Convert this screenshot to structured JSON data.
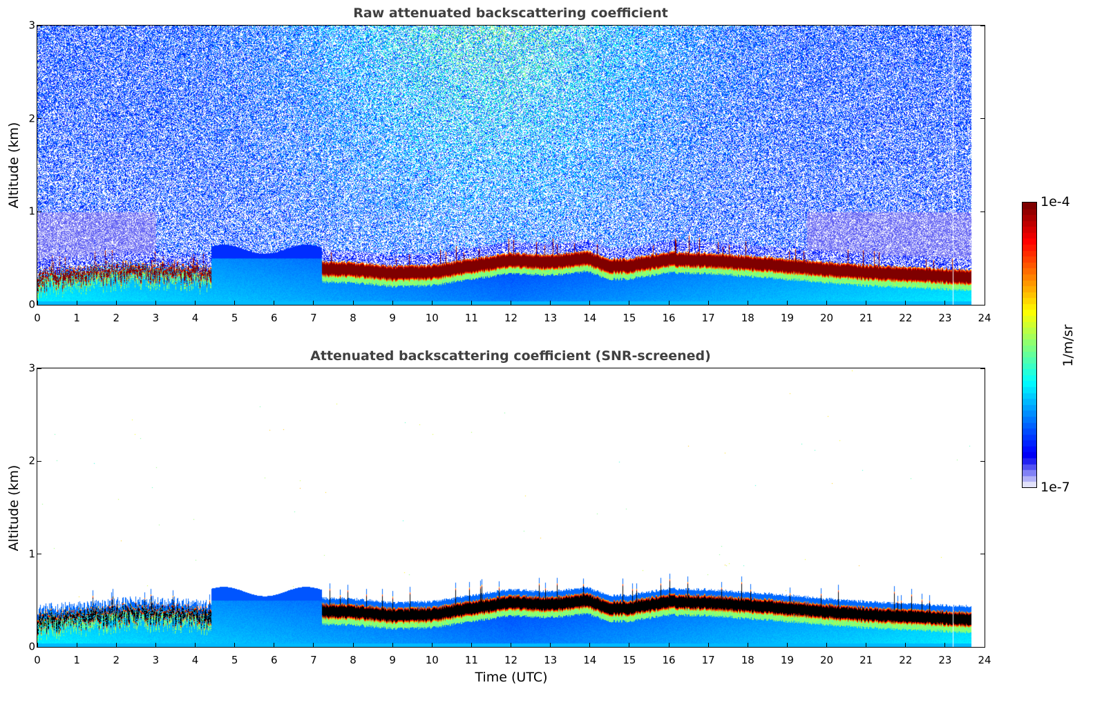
{
  "chart_data": [
    {
      "type": "heatmap",
      "title": "Raw attenuated backscattering coefficient",
      "xlabel": "",
      "ylabel": "Altitude (km)",
      "xlim": [
        0,
        24
      ],
      "ylim": [
        0,
        3
      ],
      "x_ticks": [
        "0",
        "1",
        "2",
        "3",
        "4",
        "5",
        "6",
        "7",
        "8",
        "9",
        "10",
        "11",
        "12",
        "13",
        "14",
        "15",
        "16",
        "17",
        "18",
        "19",
        "20",
        "21",
        "22",
        "23",
        "24"
      ],
      "y_ticks": [
        "0",
        "1",
        "2",
        "3"
      ],
      "data_end_time": 23.67,
      "screened": false,
      "layer_top_km": [
        [
          0,
          0.35
        ],
        [
          1,
          0.38
        ],
        [
          2,
          0.42
        ],
        [
          3,
          0.45
        ],
        [
          4,
          0.4
        ],
        [
          5,
          0.4
        ],
        [
          6,
          0.45
        ],
        [
          7,
          0.47
        ],
        [
          8,
          0.46
        ],
        [
          9,
          0.42
        ],
        [
          10,
          0.43
        ],
        [
          11,
          0.5
        ],
        [
          12,
          0.56
        ],
        [
          13,
          0.54
        ],
        [
          13.9,
          0.58
        ],
        [
          14.5,
          0.5
        ],
        [
          15,
          0.5
        ],
        [
          16,
          0.57
        ],
        [
          17,
          0.56
        ],
        [
          18,
          0.53
        ],
        [
          19,
          0.5
        ],
        [
          20,
          0.46
        ],
        [
          21,
          0.43
        ],
        [
          22,
          0.41
        ],
        [
          23,
          0.39
        ],
        [
          23.67,
          0.38
        ]
      ]
    },
    {
      "type": "heatmap",
      "title": "Attenuated backscattering coefficient (SNR-screened)",
      "xlabel": "Time (UTC)",
      "ylabel": "Altitude (km)",
      "xlim": [
        0,
        24
      ],
      "ylim": [
        0,
        3
      ],
      "x_ticks": [
        "0",
        "1",
        "2",
        "3",
        "4",
        "5",
        "6",
        "7",
        "8",
        "9",
        "10",
        "11",
        "12",
        "13",
        "14",
        "15",
        "16",
        "17",
        "18",
        "19",
        "20",
        "21",
        "22",
        "23",
        "24"
      ],
      "y_ticks": [
        "0",
        "1",
        "2",
        "3"
      ],
      "data_end_time": 23.67,
      "screened": true
    }
  ],
  "colorbar": {
    "max_label": "1e-4",
    "min_label": "1e-7",
    "units": "1/m/sr",
    "colormap": "jet",
    "scale": "log"
  },
  "colors": {
    "title": "#404040",
    "saturated": "#800000",
    "screened_saturated": "#000000"
  }
}
